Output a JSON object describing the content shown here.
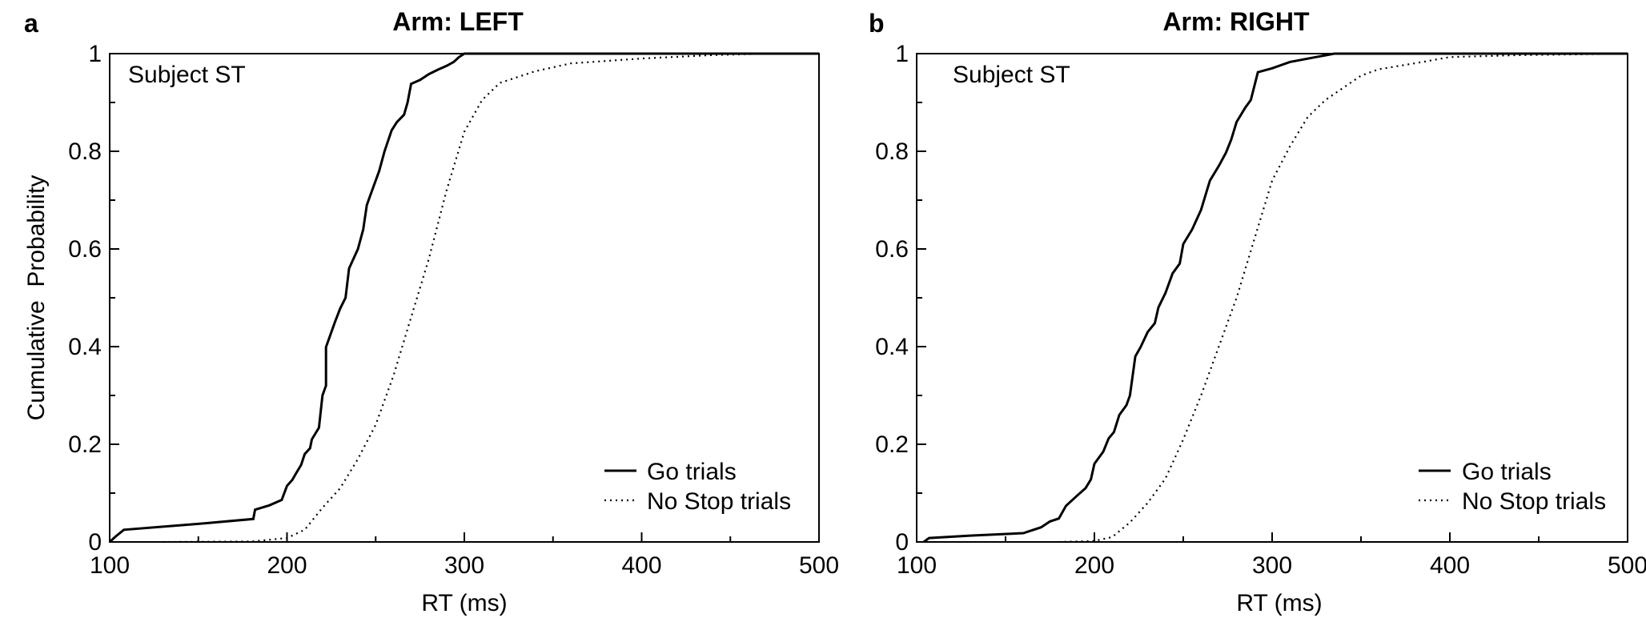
{
  "chart_data": [
    {
      "panel_label": "a",
      "type": "line",
      "title": "Arm: LEFT",
      "subject_label": "Subject ST",
      "xlabel": "RT (ms)",
      "ylabel": "Cumulative  Probability",
      "xlim": [
        100,
        500
      ],
      "ylim": [
        0,
        1
      ],
      "xticks": [
        "100",
        "200",
        "300",
        "400",
        "500"
      ],
      "yticks": [
        "0",
        "0.2",
        "0.4",
        "0.6",
        "0.8",
        "1"
      ],
      "legend": {
        "placement": "bottom-right"
      },
      "series": [
        {
          "name": "Go trials",
          "style": "solid",
          "points": [
            [
              100,
              0
            ],
            [
              103,
              0.01
            ],
            [
              108,
              0.025
            ],
            [
              150,
              0.037
            ],
            [
              181,
              0.047
            ],
            [
              182,
              0.066
            ],
            [
              190,
              0.075
            ],
            [
              197,
              0.086
            ],
            [
              200,
              0.115
            ],
            [
              203,
              0.127
            ],
            [
              205,
              0.14
            ],
            [
              208,
              0.158
            ],
            [
              210,
              0.18
            ],
            [
              213,
              0.192
            ],
            [
              214,
              0.21
            ],
            [
              218,
              0.234
            ],
            [
              220,
              0.3
            ],
            [
              222,
              0.32
            ],
            [
              222,
              0.399
            ],
            [
              227,
              0.45
            ],
            [
              230,
              0.478
            ],
            [
              233,
              0.5
            ],
            [
              235,
              0.56
            ],
            [
              240,
              0.6
            ],
            [
              243,
              0.64
            ],
            [
              245,
              0.69
            ],
            [
              249,
              0.73
            ],
            [
              252,
              0.76
            ],
            [
              255,
              0.8
            ],
            [
              259,
              0.843
            ],
            [
              262,
              0.86
            ],
            [
              266,
              0.875
            ],
            [
              268,
              0.9
            ],
            [
              270,
              0.938
            ],
            [
              275,
              0.946
            ],
            [
              280,
              0.958
            ],
            [
              285,
              0.967
            ],
            [
              290,
              0.975
            ],
            [
              294,
              0.983
            ],
            [
              297,
              0.993
            ],
            [
              300,
              1.0
            ],
            [
              500,
              1.0
            ]
          ]
        },
        {
          "name": "No Stop trials",
          "style": "dotted",
          "points": [
            [
              130,
              0
            ],
            [
              180,
              0.001
            ],
            [
              200,
              0.008
            ],
            [
              210,
              0.025
            ],
            [
              220,
              0.07
            ],
            [
              230,
              0.11
            ],
            [
              240,
              0.17
            ],
            [
              250,
              0.24
            ],
            [
              260,
              0.34
            ],
            [
              270,
              0.46
            ],
            [
              280,
              0.58
            ],
            [
              290,
              0.72
            ],
            [
              300,
              0.84
            ],
            [
              310,
              0.905
            ],
            [
              320,
              0.94
            ],
            [
              340,
              0.964
            ],
            [
              360,
              0.98
            ],
            [
              400,
              0.99
            ],
            [
              440,
              0.997
            ],
            [
              470,
              1.0
            ],
            [
              500,
              1.0
            ]
          ]
        }
      ]
    },
    {
      "panel_label": "b",
      "type": "line",
      "title": "Arm: RIGHT",
      "subject_label": "Subject ST",
      "xlabel": "RT (ms)",
      "ylabel": "",
      "xlim": [
        100,
        500
      ],
      "ylim": [
        0,
        1
      ],
      "xticks": [
        "100",
        "200",
        "300",
        "400",
        "500"
      ],
      "yticks": [
        "0",
        "0.2",
        "0.4",
        "0.6",
        "0.8",
        "1"
      ],
      "legend": {
        "placement": "bottom-right"
      },
      "series": [
        {
          "name": "Go trials",
          "style": "solid",
          "points": [
            [
              104,
              0
            ],
            [
              107,
              0.008
            ],
            [
              130,
              0.013
            ],
            [
              160,
              0.018
            ],
            [
              170,
              0.03
            ],
            [
              175,
              0.042
            ],
            [
              180,
              0.048
            ],
            [
              184,
              0.074
            ],
            [
              190,
              0.094
            ],
            [
              195,
              0.11
            ],
            [
              198,
              0.128
            ],
            [
              200,
              0.16
            ],
            [
              205,
              0.185
            ],
            [
              208,
              0.212
            ],
            [
              211,
              0.225
            ],
            [
              214,
              0.26
            ],
            [
              218,
              0.28
            ],
            [
              220,
              0.3
            ],
            [
              223,
              0.38
            ],
            [
              226,
              0.399
            ],
            [
              230,
              0.43
            ],
            [
              234,
              0.448
            ],
            [
              236,
              0.48
            ],
            [
              240,
              0.51
            ],
            [
              244,
              0.55
            ],
            [
              248,
              0.57
            ],
            [
              250,
              0.61
            ],
            [
              255,
              0.64
            ],
            [
              260,
              0.68
            ],
            [
              265,
              0.74
            ],
            [
              270,
              0.77
            ],
            [
              274,
              0.797
            ],
            [
              277,
              0.824
            ],
            [
              280,
              0.86
            ],
            [
              285,
              0.89
            ],
            [
              288,
              0.905
            ],
            [
              292,
              0.962
            ],
            [
              300,
              0.97
            ],
            [
              310,
              0.983
            ],
            [
              335,
              1.0
            ],
            [
              500,
              1.0
            ]
          ]
        },
        {
          "name": "No Stop trials",
          "style": "dotted",
          "points": [
            [
              180,
              0
            ],
            [
              200,
              0.002
            ],
            [
              210,
              0.01
            ],
            [
              220,
              0.04
            ],
            [
              230,
              0.08
            ],
            [
              240,
              0.13
            ],
            [
              250,
              0.21
            ],
            [
              260,
              0.3
            ],
            [
              270,
              0.4
            ],
            [
              280,
              0.5
            ],
            [
              290,
              0.62
            ],
            [
              300,
              0.74
            ],
            [
              310,
              0.81
            ],
            [
              320,
              0.87
            ],
            [
              330,
              0.905
            ],
            [
              340,
              0.93
            ],
            [
              350,
              0.955
            ],
            [
              360,
              0.968
            ],
            [
              380,
              0.98
            ],
            [
              400,
              0.993
            ],
            [
              440,
              0.997
            ],
            [
              500,
              1.0
            ]
          ]
        }
      ]
    }
  ]
}
